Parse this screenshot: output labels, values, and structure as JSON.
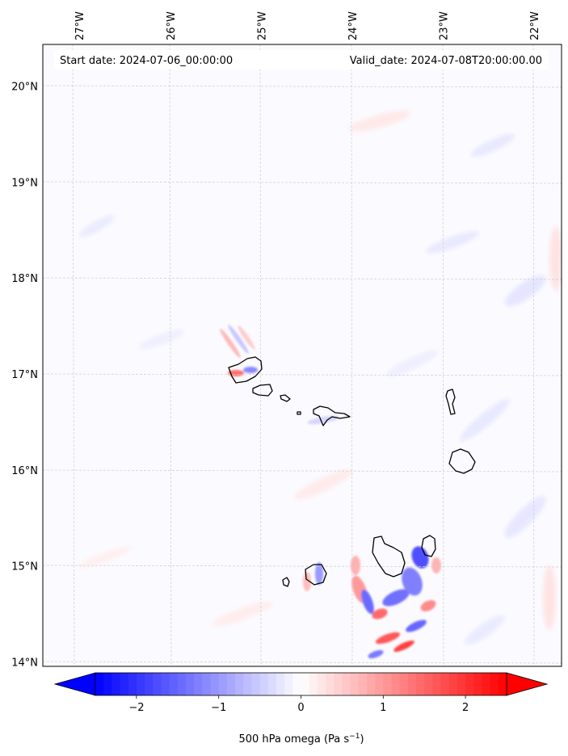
{
  "map": {
    "start_label": "Start date: 2024-07-06_00:00:00",
    "valid_label": "Valid_date: 2024-07-08T20:00:00.00",
    "lon_ticks": [
      {
        "value": -27,
        "label": "27°W"
      },
      {
        "value": -26,
        "label": "26°W"
      },
      {
        "value": -25,
        "label": "25°W"
      },
      {
        "value": -24,
        "label": "24°W"
      },
      {
        "value": -23,
        "label": "23°W"
      },
      {
        "value": -22,
        "label": "22°W"
      }
    ],
    "lat_ticks": [
      {
        "value": 20,
        "label": "20°N"
      },
      {
        "value": 19,
        "label": "19°N"
      },
      {
        "value": 18,
        "label": "18°N"
      },
      {
        "value": 17,
        "label": "17°N"
      },
      {
        "value": 16,
        "label": "16°N"
      },
      {
        "value": 15,
        "label": "15°N"
      },
      {
        "value": 14,
        "label": "14°N"
      }
    ],
    "islands": [
      "Santo Antão",
      "São Vicente",
      "Santa Luzia",
      "Branco",
      "São Nicolau",
      "Sal",
      "Boa Vista",
      "Brava",
      "Fogo",
      "Santiago",
      "Maio"
    ]
  },
  "colorbar": {
    "label_prefix": "500 hPa omega (Pa s",
    "label_exp": "−1",
    "label_suffix": ")",
    "min": -2.5,
    "max": 2.5,
    "ticks": [
      {
        "value": -2,
        "label": "−2"
      },
      {
        "value": -1,
        "label": "−1"
      },
      {
        "value": 0,
        "label": "0"
      },
      {
        "value": 1,
        "label": "1"
      },
      {
        "value": 2,
        "label": "2"
      }
    ],
    "neg_color": "#0000ff",
    "pos_color": "#ff0000",
    "mid_color": "#ffffff",
    "extend": "both"
  }
}
